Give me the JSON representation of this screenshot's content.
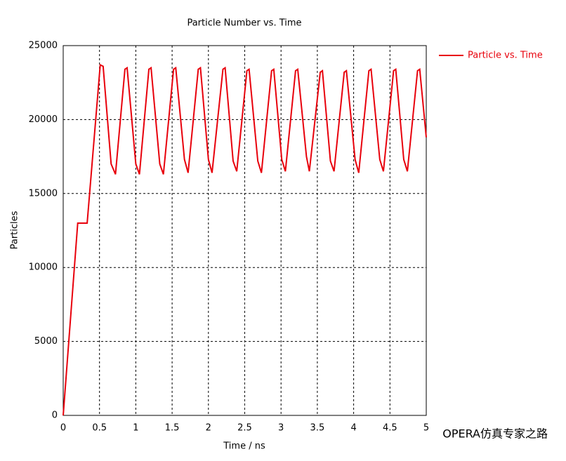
{
  "chart_data": {
    "type": "line",
    "title": "Particle Number vs. Time",
    "x_label": "Time / ns",
    "y_label": "Particles",
    "x": [
      0,
      0.2,
      0.33,
      0.51,
      0.55,
      0.66,
      0.72,
      0.85,
      0.88,
      1.0,
      1.05,
      1.18,
      1.21,
      1.33,
      1.38,
      1.52,
      1.55,
      1.67,
      1.72,
      1.86,
      1.89,
      2.0,
      2.05,
      2.2,
      2.23,
      2.34,
      2.39,
      2.53,
      2.56,
      2.68,
      2.73,
      2.87,
      2.9,
      3.01,
      3.06,
      3.2,
      3.23,
      3.35,
      3.39,
      3.54,
      3.57,
      3.68,
      3.73,
      3.87,
      3.9,
      4.02,
      4.07,
      4.21,
      4.24,
      4.36,
      4.41,
      4.55,
      4.58,
      4.69,
      4.74,
      4.88,
      4.91,
      5.0
    ],
    "series": [
      {
        "name": "Particle vs. Time",
        "color": "#e8000b",
        "values": [
          0,
          13000,
          13000,
          23700,
          23600,
          17000,
          16300,
          23400,
          23500,
          17000,
          16300,
          23400,
          23500,
          17000,
          16300,
          23400,
          23500,
          17300,
          16400,
          23400,
          23500,
          17300,
          16400,
          23400,
          23500,
          17200,
          16500,
          23300,
          23400,
          17200,
          16400,
          23300,
          23400,
          17300,
          16500,
          23300,
          23400,
          17500,
          16500,
          23200,
          23300,
          17200,
          16500,
          23200,
          23300,
          17300,
          16400,
          23300,
          23400,
          17300,
          16500,
          23300,
          23400,
          17300,
          16500,
          23300,
          23400,
          18800
        ]
      }
    ],
    "xlim": [
      0,
      5
    ],
    "xticks": [
      0,
      0.5,
      1,
      1.5,
      2,
      2.5,
      3,
      3.5,
      4,
      4.5,
      5
    ],
    "ylim": [
      0,
      25000
    ],
    "yticks": [
      0,
      5000,
      10000,
      15000,
      20000,
      25000
    ],
    "grid": true,
    "legend": "right"
  },
  "watermark": "OPERA仿真专家之路"
}
